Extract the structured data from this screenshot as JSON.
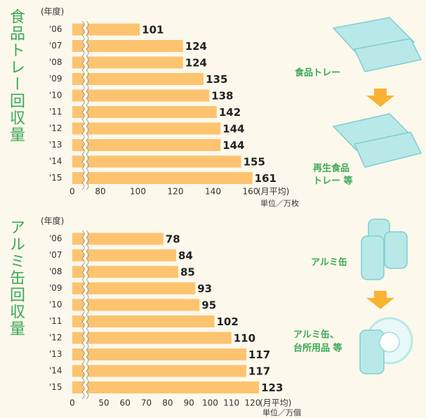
{
  "chart_data": [
    {
      "type": "hbar",
      "title": "食品トレー回収量",
      "category_label": "(年度)",
      "categories": [
        "'06",
        "'07",
        "'08",
        "'09",
        "'10",
        "'11",
        "'12",
        "'13",
        "'14",
        "'15"
      ],
      "values": [
        101,
        124,
        124,
        135,
        138,
        142,
        144,
        144,
        155,
        161
      ],
      "color": "#fdc36f",
      "xlim": [
        0,
        160
      ],
      "xticks": [
        0,
        80,
        100,
        120,
        140,
        160
      ],
      "axis_break": true,
      "x_label": "(月平均)",
      "unit": "単位／万枚"
    },
    {
      "type": "hbar",
      "title": "アルミ缶回収量",
      "category_label": "(年度)",
      "categories": [
        "'06",
        "'07",
        "'08",
        "'09",
        "'10",
        "'11",
        "'12",
        "'13",
        "'14",
        "'15"
      ],
      "values": [
        78,
        84,
        85,
        93,
        95,
        102,
        110,
        117,
        117,
        123
      ],
      "color": "#fdc36f",
      "xlim": [
        0,
        120
      ],
      "xticks": [
        0,
        50,
        60,
        70,
        80,
        90,
        100,
        110,
        120
      ],
      "axis_break": true,
      "x_label": "(月平均)",
      "unit": "単位／万個"
    }
  ],
  "illustrations": {
    "tray_before": "食品トレー",
    "tray_after": [
      "再生食品",
      "トレー 等"
    ],
    "can_before": "アルミ缶",
    "can_after": [
      "アルミ缶、",
      "台所用品 等"
    ]
  }
}
